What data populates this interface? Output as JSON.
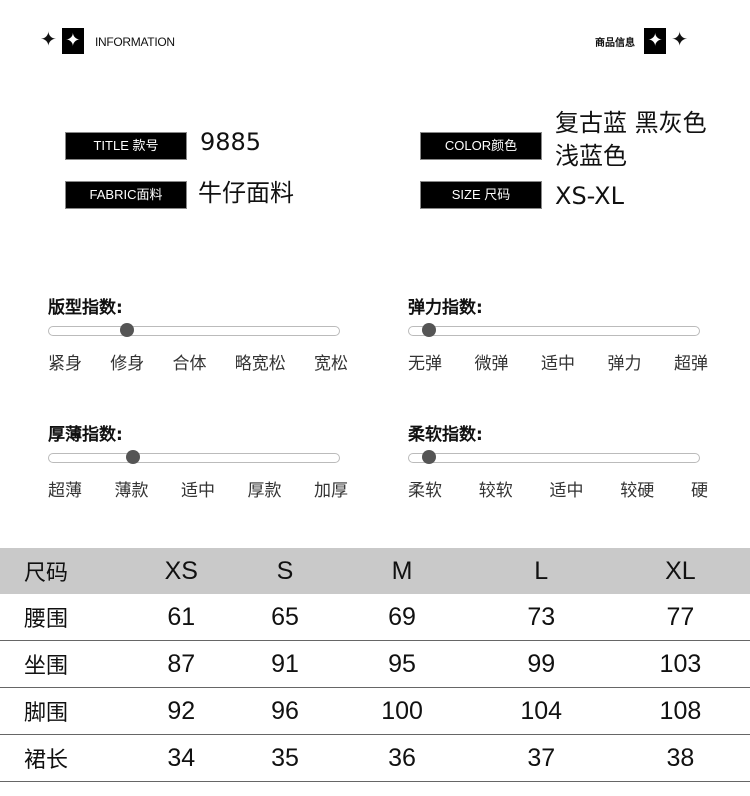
{
  "header": {
    "left_label": "INFORMATION",
    "right_label": "商品信息",
    "icons": [
      "sparkle-star-icon",
      "boxed-star-icon"
    ]
  },
  "info": {
    "title": {
      "label": "TITLE 款号",
      "value": "9885"
    },
    "fabric": {
      "label": "FABRIC面料",
      "value": "牛仔面料"
    },
    "color": {
      "label": "COLOR颜色",
      "value_line1": "复古蓝 黑灰色",
      "value_line2": "浅蓝色"
    },
    "size": {
      "label": "SIZE 尺码",
      "value": "XS-XL"
    }
  },
  "indices": [
    {
      "title": "版型指数:",
      "options": [
        "紧身",
        "修身",
        "合体",
        "略宽松",
        "宽松"
      ],
      "level_percent": 27
    },
    {
      "title": "弹力指数:",
      "options": [
        "无弹",
        "微弹",
        "适中",
        "弹力",
        "超弹"
      ],
      "level_percent": 7
    },
    {
      "title": "厚薄指数:",
      "options": [
        "超薄",
        "薄款",
        "适中",
        "厚款",
        "加厚"
      ],
      "level_percent": 29
    },
    {
      "title": "柔软指数:",
      "options": [
        "柔软",
        "较软",
        "适中",
        "较硬",
        "硬"
      ],
      "level_percent": 7
    }
  ],
  "size_table": {
    "headers": [
      "尺码",
      "XS",
      "S",
      "M",
      "L",
      "XL"
    ],
    "rows": [
      [
        "腰围",
        "61",
        "65",
        "69",
        "73",
        "77"
      ],
      [
        "坐围",
        "87",
        "91",
        "95",
        "99",
        "103"
      ],
      [
        "脚围",
        "92",
        "96",
        "100",
        "104",
        "108"
      ],
      [
        "裙长",
        "34",
        "35",
        "36",
        "37",
        "38"
      ]
    ]
  }
}
